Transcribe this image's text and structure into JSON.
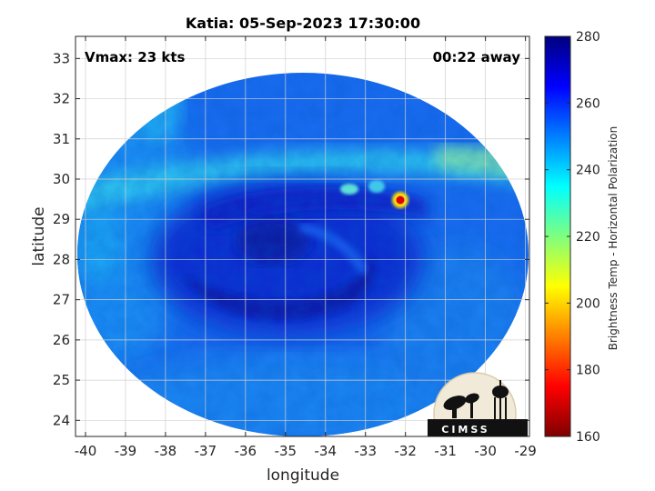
{
  "chart_data": {
    "type": "heatmap",
    "title": "Katia: 05-Sep-2023 17:30:00",
    "xlabel": "longitude",
    "ylabel": "latitude",
    "xlim": [
      -40.25,
      -28.9
    ],
    "ylim": [
      23.6,
      33.55
    ],
    "xticks": [
      -40,
      -39,
      -38,
      -37,
      -36,
      -35,
      -34,
      -33,
      -32,
      -31,
      -30,
      -29
    ],
    "yticks": [
      24,
      25,
      26,
      27,
      28,
      29,
      30,
      31,
      32,
      33
    ],
    "grid": true,
    "annotations": {
      "left": "Vmax: 23 kts",
      "right": "00:22 away"
    },
    "colorbar": {
      "label": "Brightness Temp - Horizontal Polarization",
      "min": 160,
      "max": 280,
      "ticks": [
        160,
        180,
        200,
        220,
        240,
        260,
        280
      ],
      "colormap": [
        "#7f0000",
        "#ff0000",
        "#ff7f00",
        "#ffff00",
        "#7fff7f",
        "#00ffff",
        "#007fff",
        "#0000ff",
        "#00007f"
      ]
    },
    "swath_center": {
      "lon": -34.55,
      "lat": 28.6
    },
    "features": [
      {
        "name": "storm-center",
        "lon": -35.0,
        "lat": 28.2,
        "value": 262
      },
      {
        "name": "northern-band",
        "lon": -34.0,
        "lat": 30.4,
        "value": 248
      },
      {
        "name": "warm-spot-1",
        "lon": -33.4,
        "lat": 29.8,
        "value": 236
      },
      {
        "name": "warm-spot-2",
        "lon": -32.8,
        "lat": 29.8,
        "value": 240
      },
      {
        "name": "hot-pixel",
        "lon": -32.05,
        "lat": 29.55,
        "value": 185
      },
      {
        "name": "ne-band",
        "lon": -29.8,
        "lat": 30.6,
        "value": 232
      }
    ],
    "background_value": 250
  },
  "logo": {
    "text": "CIMSS",
    "icon": "satellite-dish-water-tower-icon"
  }
}
